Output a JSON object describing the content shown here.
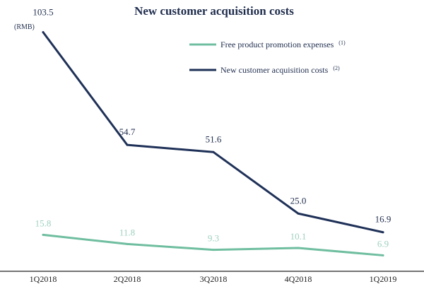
{
  "title": "New customer acquisition costs",
  "unit": "(RMB)",
  "colors": {
    "promo": "#6fbea0",
    "promo_label": "#9fd0bf",
    "acq": "#1f3158",
    "axis": "#222222"
  },
  "legend": [
    {
      "label": "Free product promotion expenses",
      "note": "(1)"
    },
    {
      "label": "New customer acquisition costs",
      "note": "(2)"
    }
  ],
  "chart_data": {
    "type": "line",
    "title": "New customer acquisition costs",
    "ylabel": "(RMB)",
    "x": [
      "1Q2018",
      "2Q2018",
      "3Q2018",
      "4Q2018",
      "1Q2019"
    ],
    "series": [
      {
        "name": "Free product promotion expenses",
        "values": [
          15.8,
          11.8,
          9.3,
          10.1,
          6.9
        ],
        "labels": [
          "15.8",
          "11.8",
          "9.3",
          "10.1",
          "6.9"
        ]
      },
      {
        "name": "New customer acquisition costs",
        "values": [
          103.5,
          54.7,
          51.6,
          25.0,
          16.9
        ],
        "labels": [
          "103.5",
          "54.7",
          "51.6",
          "25.0",
          "16.9"
        ]
      }
    ],
    "ylim": [
      0,
      115
    ],
    "grid": false,
    "legend_position": "top-right"
  }
}
